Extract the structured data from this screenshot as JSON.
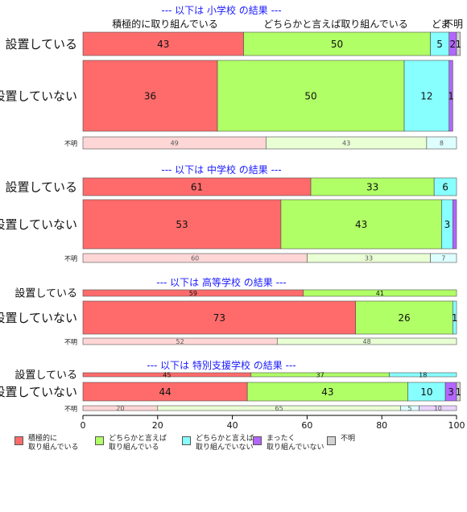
{
  "chart_data": {
    "type": "bar",
    "orientation": "horizontal",
    "stacked": true,
    "percent_axis": {
      "ticks": [
        0,
        20,
        40,
        60,
        80,
        100
      ],
      "xlim": [
        0,
        100
      ]
    },
    "categories_legend": [
      {
        "name": "積極的に\n取り組んでいる",
        "color": "#FF6B6B"
      },
      {
        "name": "どちらかと言えば\n取り組んでいる",
        "color": "#B0FF66"
      },
      {
        "name": "どちらかと言えば\n取り組んでいない",
        "color": "#88FFFF"
      },
      {
        "name": "まったく\n取り組んでいない",
        "color": "#B266FF"
      },
      {
        "name": "不明",
        "color": "#D3D3D3"
      }
    ],
    "top_labels": [
      "積極的に取り組んでいる",
      "どちらかと言えば取り組んでいる",
      "ど",
      "ま",
      "不明"
    ],
    "panels": [
      {
        "title": "--- 以下は 小学校 の結果 ---",
        "rows": [
          {
            "label": "設置している",
            "values": [
              43,
              50,
              5,
              2,
              1
            ],
            "labels": [
              "43",
              "50",
              "5",
              "2",
              "1"
            ]
          },
          {
            "label": "設置していない",
            "values": [
              36,
              50,
              12,
              1,
              0
            ],
            "labels": [
              "36",
              "50",
              "12",
              "1",
              ""
            ]
          },
          {
            "label": "不明",
            "values": [
              49,
              43,
              8,
              0,
              0
            ],
            "labels": [
              "49",
              "43",
              "8",
              "",
              ""
            ]
          }
        ]
      },
      {
        "title": "--- 以下は 中学校 の結果 ---",
        "rows": [
          {
            "label": "設置している",
            "values": [
              61,
              33,
              6,
              0,
              0
            ],
            "labels": [
              "61",
              "33",
              "6",
              "",
              ""
            ]
          },
          {
            "label": "設置していない",
            "values": [
              53,
              43,
              3,
              1,
              0
            ],
            "labels": [
              "53",
              "43",
              "3",
              "",
              ""
            ]
          },
          {
            "label": "不明",
            "values": [
              60,
              33,
              7,
              0,
              0
            ],
            "labels": [
              "60",
              "33",
              "7",
              "",
              ""
            ]
          }
        ]
      },
      {
        "title": "--- 以下は 高等学校 の結果 ---",
        "rows": [
          {
            "label": "設置している",
            "values": [
              59,
              41,
              0,
              0,
              0
            ],
            "labels": [
              "59",
              "41",
              "",
              "",
              ""
            ]
          },
          {
            "label": "設置していない",
            "values": [
              73,
              26,
              1,
              0,
              0
            ],
            "labels": [
              "73",
              "26",
              "1",
              "",
              ""
            ]
          },
          {
            "label": "不明",
            "values": [
              52,
              48,
              0,
              0,
              0
            ],
            "labels": [
              "52",
              "48",
              "",
              "",
              ""
            ]
          }
        ]
      },
      {
        "title": "--- 以下は 特別支援学校 の結果 ---",
        "rows": [
          {
            "label": "設置している",
            "values": [
              45,
              37,
              18,
              0,
              0
            ],
            "labels": [
              "45",
              "37",
              "18",
              "",
              ""
            ]
          },
          {
            "label": "設置していない",
            "values": [
              44,
              43,
              10,
              3,
              1
            ],
            "labels": [
              "44",
              "43",
              "10",
              "3",
              "1"
            ]
          },
          {
            "label": "不明",
            "values": [
              20,
              65,
              5,
              10,
              0
            ],
            "labels": [
              "20",
              "65",
              "5",
              "10",
              ""
            ]
          }
        ]
      }
    ]
  }
}
